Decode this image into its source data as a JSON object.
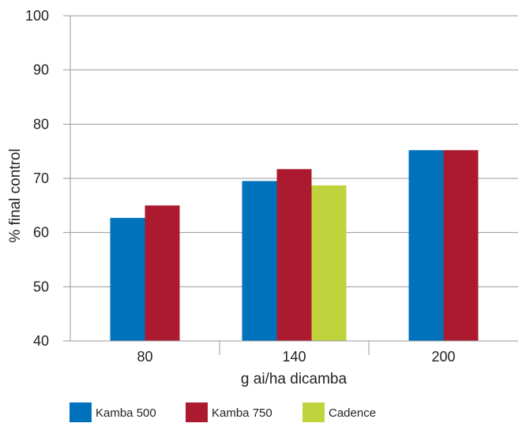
{
  "chart_data": {
    "type": "bar",
    "title": "",
    "xlabel": "g ai/ha dicamba",
    "ylabel": "% final control",
    "categories": [
      "80",
      "140",
      "200"
    ],
    "ylim": [
      40,
      100
    ],
    "yticks": [
      40,
      50,
      60,
      70,
      80,
      90,
      100
    ],
    "grid": true,
    "legend_position": "bottom-left",
    "series": [
      {
        "name": "Kamba 500",
        "color": "#0072bc",
        "values": [
          62.7,
          69.5,
          75.2
        ]
      },
      {
        "name": "Kamba 750",
        "color": "#ac1a2f",
        "values": [
          65.0,
          71.7,
          75.2
        ]
      },
      {
        "name": "Cadence",
        "color": "#bfd33c",
        "values": [
          null,
          68.7,
          null
        ]
      }
    ]
  }
}
